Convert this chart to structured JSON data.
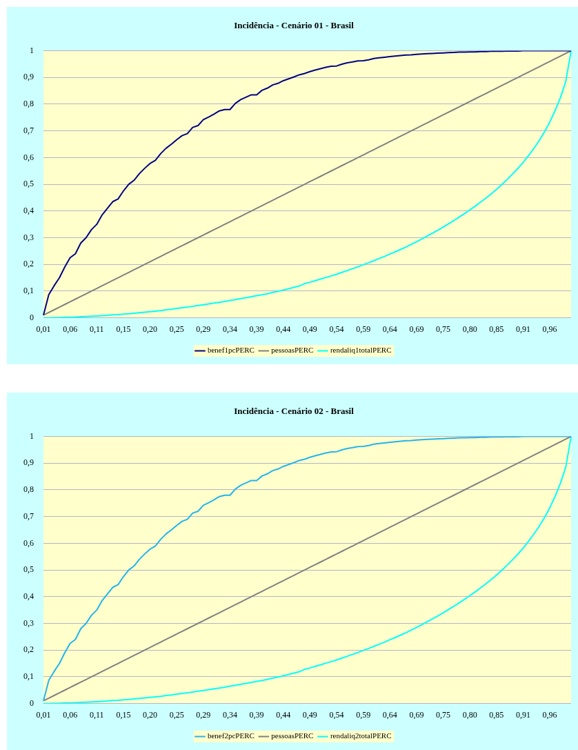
{
  "chart_data": [
    {
      "type": "line",
      "title": "Incidência - Cenário 01 - Brasil",
      "categories": [
        "0,01",
        null,
        null,
        null,
        null,
        "0,06",
        null,
        null,
        null,
        null,
        "0,11",
        null,
        null,
        null,
        null,
        "0,15",
        null,
        null,
        null,
        null,
        "0,20",
        null,
        null,
        null,
        null,
        "0,25",
        null,
        null,
        null,
        null,
        "0,29",
        null,
        null,
        null,
        null,
        "0,34",
        null,
        null,
        null,
        null,
        "0,39",
        null,
        null,
        null,
        null,
        "0,44",
        null,
        null,
        null,
        null,
        "0,49",
        null,
        null,
        null,
        null,
        "0,54",
        null,
        null,
        null,
        null,
        "0,59",
        null,
        null,
        null,
        null,
        "0,64",
        null,
        null,
        null,
        null,
        "0,69",
        null,
        null,
        null,
        null,
        "0,75",
        null,
        null,
        null,
        null,
        "0,80",
        null,
        null,
        null,
        null,
        "0,85",
        null,
        null,
        null,
        null,
        "0,91",
        null,
        null,
        null,
        null,
        "0,96",
        null,
        null,
        null,
        null
      ],
      "series": [
        {
          "name": "benef1pcPERC",
          "color": "#000080",
          "values": [
            0.01,
            0.087,
            0.12,
            0.15,
            0.19,
            0.225,
            0.24,
            0.28,
            0.3,
            0.33,
            0.35,
            0.385,
            0.41,
            0.435,
            0.445,
            0.475,
            0.5,
            0.515,
            0.54,
            0.56,
            0.578,
            0.59,
            0.615,
            0.635,
            0.65,
            0.667,
            0.682,
            0.69,
            0.713,
            0.72,
            0.742,
            0.752,
            0.763,
            0.775,
            0.78,
            0.78,
            0.803,
            0.817,
            0.826,
            0.835,
            0.835,
            0.852,
            0.86,
            0.872,
            0.878,
            0.888,
            0.895,
            0.902,
            0.91,
            0.915,
            0.922,
            0.928,
            0.933,
            0.938,
            0.942,
            0.943,
            0.95,
            0.955,
            0.958,
            0.962,
            0.963,
            0.966,
            0.971,
            0.974,
            0.976,
            0.978,
            0.98,
            0.982,
            0.984,
            0.985,
            0.987,
            0.988,
            0.989,
            0.99,
            0.991,
            0.992,
            0.993,
            0.994,
            0.995,
            0.995,
            0.996,
            0.996,
            0.997,
            0.997,
            0.998,
            0.998,
            0.998,
            0.999,
            0.999,
            0.999,
            1,
            1,
            1,
            1,
            1,
            1,
            1,
            1,
            1,
            1
          ]
        },
        {
          "name": "pessoasPERC",
          "color": "#808080",
          "values": [
            0.01,
            0.02,
            0.03,
            0.04,
            0.05,
            0.06,
            0.07,
            0.08,
            0.09,
            0.1,
            0.11,
            0.12,
            0.13,
            0.14,
            0.15,
            0.16,
            0.17,
            0.18,
            0.19,
            0.2,
            0.21,
            0.22,
            0.23,
            0.24,
            0.25,
            0.26,
            0.27,
            0.28,
            0.29,
            0.3,
            0.31,
            0.32,
            0.33,
            0.34,
            0.35,
            0.36,
            0.37,
            0.38,
            0.39,
            0.4,
            0.41,
            0.42,
            0.43,
            0.44,
            0.45,
            0.46,
            0.47,
            0.48,
            0.49,
            0.5,
            0.51,
            0.52,
            0.53,
            0.54,
            0.55,
            0.56,
            0.57,
            0.58,
            0.59,
            0.6,
            0.61,
            0.62,
            0.63,
            0.64,
            0.65,
            0.66,
            0.67,
            0.68,
            0.69,
            0.7,
            0.71,
            0.72,
            0.73,
            0.74,
            0.75,
            0.76,
            0.77,
            0.78,
            0.79,
            0.8,
            0.81,
            0.82,
            0.83,
            0.84,
            0.85,
            0.86,
            0.87,
            0.88,
            0.89,
            0.9,
            0.91,
            0.92,
            0.93,
            0.94,
            0.95,
            0.96,
            0.97,
            0.98,
            0.99,
            1
          ]
        },
        {
          "name": "rendaliq1totalPERC",
          "color": "#00ffff",
          "values": [
            0,
            0,
            0.001,
            0.001,
            0.002,
            0.002,
            0.003,
            0.004,
            0.005,
            0.006,
            0.007,
            0.008,
            0.009,
            0.011,
            0.012,
            0.014,
            0.015,
            0.017,
            0.019,
            0.021,
            0.023,
            0.025,
            0.027,
            0.03,
            0.032,
            0.035,
            0.038,
            0.04,
            0.043,
            0.046,
            0.049,
            0.052,
            0.055,
            0.058,
            0.061,
            0.065,
            0.068,
            0.072,
            0.075,
            0.079,
            0.083,
            0.086,
            0.09,
            0.095,
            0.099,
            0.104,
            0.109,
            0.114,
            0.119,
            0.128,
            0.133,
            0.139,
            0.145,
            0.151,
            0.157,
            0.163,
            0.17,
            0.177,
            0.184,
            0.191,
            0.199,
            0.206,
            0.214,
            0.222,
            0.23,
            0.239,
            0.247,
            0.256,
            0.265,
            0.275,
            0.285,
            0.295,
            0.306,
            0.317,
            0.328,
            0.34,
            0.352,
            0.364,
            0.377,
            0.39,
            0.404,
            0.418,
            0.433,
            0.448,
            0.464,
            0.481,
            0.499,
            0.518,
            0.538,
            0.559,
            0.582,
            0.607,
            0.634,
            0.663,
            0.696,
            0.733,
            0.776,
            0.825,
            0.885,
            1
          ]
        }
      ],
      "ylim": [
        0,
        1
      ],
      "yticks": [
        {
          "value": 0,
          "label": "0"
        },
        {
          "value": 0.1,
          "label": "0,1"
        },
        {
          "value": 0.2,
          "label": "0,2"
        },
        {
          "value": 0.3,
          "label": "0,3"
        },
        {
          "value": 0.4,
          "label": "0,4"
        },
        {
          "value": 0.5,
          "label": "0,5"
        },
        {
          "value": 0.6,
          "label": "0,6"
        },
        {
          "value": 0.7,
          "label": "0,7"
        },
        {
          "value": 0.8,
          "label": "0,8"
        },
        {
          "value": 0.9,
          "label": "0,9"
        },
        {
          "value": 1,
          "label": "1"
        }
      ],
      "grid": "y",
      "legend": "bottom"
    },
    {
      "type": "line",
      "title": "Incidência - Cenário 02 - Brasil",
      "categories": [
        "0,01",
        null,
        null,
        null,
        null,
        "0,06",
        null,
        null,
        null,
        null,
        "0,11",
        null,
        null,
        null,
        null,
        "0,15",
        null,
        null,
        null,
        null,
        "0,20",
        null,
        null,
        null,
        null,
        "0,25",
        null,
        null,
        null,
        null,
        "0,29",
        null,
        null,
        null,
        null,
        "0,34",
        null,
        null,
        null,
        null,
        "0,39",
        null,
        null,
        null,
        null,
        "0,44",
        null,
        null,
        null,
        null,
        "0,49",
        null,
        null,
        null,
        null,
        "0,54",
        null,
        null,
        null,
        null,
        "0,59",
        null,
        null,
        null,
        null,
        "0,64",
        null,
        null,
        null,
        null,
        "0,69",
        null,
        null,
        null,
        null,
        "0,75",
        null,
        null,
        null,
        null,
        "0,80",
        null,
        null,
        null,
        null,
        "0,85",
        null,
        null,
        null,
        null,
        "0,91",
        null,
        null,
        null,
        null,
        "0,96",
        null,
        null,
        null,
        null
      ],
      "series": [
        {
          "name": "benef2pcPERC",
          "color": "#22b4ee",
          "values": [
            0.01,
            0.087,
            0.12,
            0.15,
            0.19,
            0.225,
            0.24,
            0.28,
            0.3,
            0.33,
            0.35,
            0.385,
            0.41,
            0.435,
            0.445,
            0.475,
            0.5,
            0.515,
            0.54,
            0.56,
            0.578,
            0.59,
            0.615,
            0.635,
            0.65,
            0.667,
            0.682,
            0.69,
            0.713,
            0.72,
            0.742,
            0.752,
            0.763,
            0.775,
            0.78,
            0.78,
            0.803,
            0.817,
            0.826,
            0.835,
            0.835,
            0.852,
            0.86,
            0.872,
            0.878,
            0.888,
            0.895,
            0.902,
            0.91,
            0.915,
            0.922,
            0.928,
            0.933,
            0.938,
            0.942,
            0.943,
            0.95,
            0.955,
            0.958,
            0.962,
            0.963,
            0.966,
            0.971,
            0.974,
            0.976,
            0.978,
            0.98,
            0.982,
            0.984,
            0.985,
            0.987,
            0.988,
            0.989,
            0.99,
            0.991,
            0.992,
            0.993,
            0.994,
            0.995,
            0.995,
            0.996,
            0.996,
            0.997,
            0.997,
            0.998,
            0.998,
            0.998,
            0.999,
            0.999,
            0.999,
            1,
            1,
            1,
            1,
            1,
            1,
            1,
            1,
            1,
            1
          ]
        },
        {
          "name": "pessoasPERC",
          "color": "#808080",
          "values": [
            0.01,
            0.02,
            0.03,
            0.04,
            0.05,
            0.06,
            0.07,
            0.08,
            0.09,
            0.1,
            0.11,
            0.12,
            0.13,
            0.14,
            0.15,
            0.16,
            0.17,
            0.18,
            0.19,
            0.2,
            0.21,
            0.22,
            0.23,
            0.24,
            0.25,
            0.26,
            0.27,
            0.28,
            0.29,
            0.3,
            0.31,
            0.32,
            0.33,
            0.34,
            0.35,
            0.36,
            0.37,
            0.38,
            0.39,
            0.4,
            0.41,
            0.42,
            0.43,
            0.44,
            0.45,
            0.46,
            0.47,
            0.48,
            0.49,
            0.5,
            0.51,
            0.52,
            0.53,
            0.54,
            0.55,
            0.56,
            0.57,
            0.58,
            0.59,
            0.6,
            0.61,
            0.62,
            0.63,
            0.64,
            0.65,
            0.66,
            0.67,
            0.68,
            0.69,
            0.7,
            0.71,
            0.72,
            0.73,
            0.74,
            0.75,
            0.76,
            0.77,
            0.78,
            0.79,
            0.8,
            0.81,
            0.82,
            0.83,
            0.84,
            0.85,
            0.86,
            0.87,
            0.88,
            0.89,
            0.9,
            0.91,
            0.92,
            0.93,
            0.94,
            0.95,
            0.96,
            0.97,
            0.98,
            0.99,
            1
          ]
        },
        {
          "name": "rendaliq2totalPERC",
          "color": "#00ffff",
          "values": [
            0,
            0,
            0.001,
            0.001,
            0.002,
            0.002,
            0.003,
            0.004,
            0.005,
            0.006,
            0.007,
            0.008,
            0.009,
            0.011,
            0.012,
            0.014,
            0.015,
            0.017,
            0.019,
            0.021,
            0.023,
            0.025,
            0.027,
            0.03,
            0.032,
            0.035,
            0.038,
            0.04,
            0.043,
            0.046,
            0.049,
            0.052,
            0.055,
            0.058,
            0.061,
            0.065,
            0.068,
            0.072,
            0.075,
            0.079,
            0.083,
            0.086,
            0.09,
            0.095,
            0.099,
            0.104,
            0.109,
            0.114,
            0.119,
            0.128,
            0.133,
            0.139,
            0.145,
            0.151,
            0.157,
            0.163,
            0.17,
            0.177,
            0.184,
            0.191,
            0.199,
            0.206,
            0.214,
            0.222,
            0.23,
            0.239,
            0.247,
            0.256,
            0.265,
            0.275,
            0.285,
            0.295,
            0.306,
            0.317,
            0.328,
            0.34,
            0.352,
            0.364,
            0.377,
            0.39,
            0.404,
            0.418,
            0.433,
            0.448,
            0.464,
            0.481,
            0.499,
            0.518,
            0.538,
            0.559,
            0.582,
            0.607,
            0.634,
            0.663,
            0.696,
            0.733,
            0.776,
            0.825,
            0.885,
            1
          ]
        }
      ],
      "ylim": [
        0,
        1
      ],
      "yticks": [
        {
          "value": 0,
          "label": "0"
        },
        {
          "value": 0.1,
          "label": "0,1"
        },
        {
          "value": 0.2,
          "label": "0,2"
        },
        {
          "value": 0.3,
          "label": "0,3"
        },
        {
          "value": 0.4,
          "label": "0,4"
        },
        {
          "value": 0.5,
          "label": "0,5"
        },
        {
          "value": 0.6,
          "label": "0,6"
        },
        {
          "value": 0.7,
          "label": "0,7"
        },
        {
          "value": 0.8,
          "label": "0,8"
        },
        {
          "value": 0.9,
          "label": "0,9"
        },
        {
          "value": 1,
          "label": "1"
        }
      ],
      "grid": "y",
      "legend": "bottom"
    }
  ]
}
